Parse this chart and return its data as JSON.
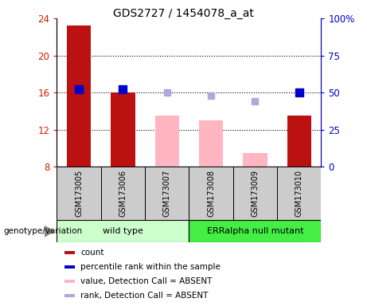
{
  "title": "GDS2727 / 1454078_a_at",
  "samples": [
    "GSM173005",
    "GSM173006",
    "GSM173007",
    "GSM173008",
    "GSM173009",
    "GSM173010"
  ],
  "bar_bottom": 8,
  "count_values": [
    23.2,
    16.0,
    null,
    null,
    null,
    13.5
  ],
  "count_absent_values": [
    null,
    null,
    13.5,
    13.0,
    9.5,
    null
  ],
  "rank_values": [
    52,
    52,
    null,
    null,
    null,
    50
  ],
  "rank_absent_values": [
    null,
    null,
    50,
    48,
    44,
    null
  ],
  "ylim_left": [
    8,
    24
  ],
  "ylim_right": [
    0,
    100
  ],
  "yticks_left": [
    8,
    12,
    16,
    20,
    24
  ],
  "yticks_right": [
    0,
    25,
    50,
    75,
    100
  ],
  "yticklabels_right": [
    "0",
    "25",
    "50",
    "75",
    "100%"
  ],
  "bar_color_count": "#BB1111",
  "bar_color_absent": "#FFB6C1",
  "marker_color_rank": "#0000CC",
  "marker_color_rank_absent": "#AAAADD",
  "label_color_left": "#CC2200",
  "label_color_right": "#0000CC",
  "bar_width": 0.55,
  "marker_size": 7,
  "group_wt_color": "#CCFFCC",
  "group_err_color": "#44EE44",
  "sample_box_color": "#CCCCCC",
  "legend_entries": [
    {
      "label": "count",
      "color": "#BB1111"
    },
    {
      "label": "percentile rank within the sample",
      "color": "#0000CC"
    },
    {
      "label": "value, Detection Call = ABSENT",
      "color": "#FFB6C1"
    },
    {
      "label": "rank, Detection Call = ABSENT",
      "color": "#AAAADD"
    }
  ]
}
